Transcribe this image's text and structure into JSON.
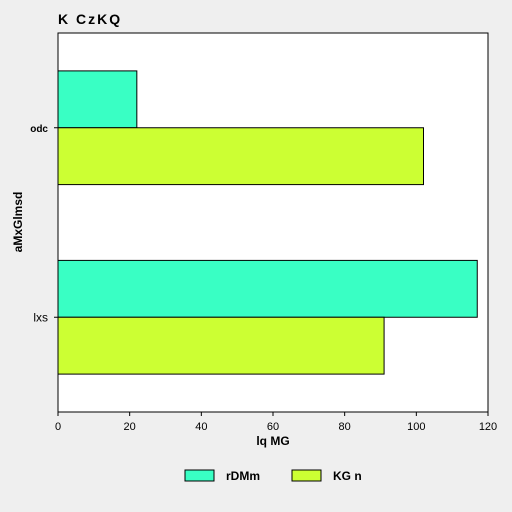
{
  "chart_data": {
    "type": "bar",
    "orientation": "horizontal",
    "title": "K CzKQ",
    "xlabel": "lq MG",
    "ylabel": "aMxGlmsd",
    "categories": [
      "lxs",
      "odc"
    ],
    "category_label_styles": [
      "normal",
      "bold"
    ],
    "series": [
      {
        "name": "rDMm",
        "color": "#39ffc4",
        "values": [
          117,
          22
        ]
      },
      {
        "name": "KG n",
        "color": "#ccff33",
        "values": [
          91,
          102
        ]
      }
    ],
    "xlim": [
      0,
      120
    ],
    "xticks": [
      "0",
      "20",
      "40",
      "60",
      "80",
      "100",
      "120"
    ],
    "grid": false,
    "legend_position": "bottom"
  }
}
